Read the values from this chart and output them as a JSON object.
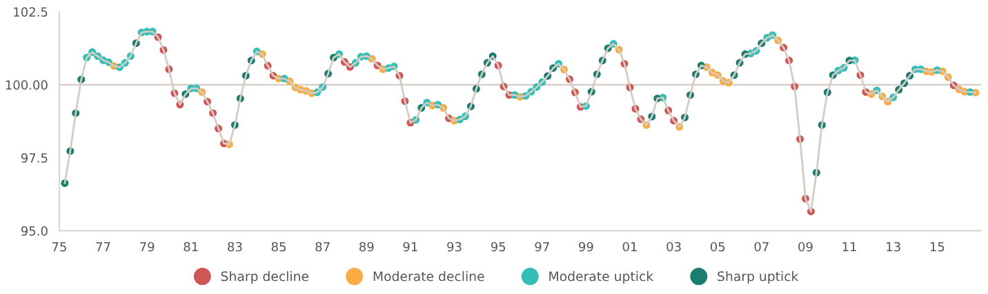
{
  "chart_data": {
    "type": "scatter",
    "xlim": [
      1975,
      2017
    ],
    "xticks": [
      {
        "value": 1975,
        "label": "75"
      },
      {
        "value": 1977,
        "label": "77"
      },
      {
        "value": 1979,
        "label": "79"
      },
      {
        "value": 1981,
        "label": "81"
      },
      {
        "value": 1983,
        "label": "83"
      },
      {
        "value": 1985,
        "label": "85"
      },
      {
        "value": 1987,
        "label": "87"
      },
      {
        "value": 1989,
        "label": "89"
      },
      {
        "value": 1991,
        "label": "91"
      },
      {
        "value": 1993,
        "label": "93"
      },
      {
        "value": 1995,
        "label": "95"
      },
      {
        "value": 1997,
        "label": "97"
      },
      {
        "value": 1999,
        "label": "99"
      },
      {
        "value": 2001,
        "label": "01"
      },
      {
        "value": 2003,
        "label": "03"
      },
      {
        "value": 2005,
        "label": "05"
      },
      {
        "value": 2007,
        "label": "07"
      },
      {
        "value": 2009,
        "label": "09"
      },
      {
        "value": 2011,
        "label": "11"
      },
      {
        "value": 2013,
        "label": "13"
      },
      {
        "value": 2015,
        "label": "15"
      }
    ],
    "ylim": [
      95,
      102.5
    ],
    "yticks": [
      {
        "value": 95,
        "label": "95.0"
      },
      {
        "value": 97.5,
        "label": "97.5"
      },
      {
        "value": 100,
        "label": "100.00"
      },
      {
        "value": 102.5,
        "label": "102.5"
      }
    ],
    "ref_lines": [
      {
        "axis": "y",
        "value": 100,
        "color": "#d3cbc4"
      }
    ],
    "grid": false,
    "legend": "bottom",
    "series": [
      {
        "type": "line",
        "color": "#d3cbc4",
        "x": [
          1975.25,
          1975.5,
          1975.75,
          1976,
          1976.25,
          1976.5,
          1976.75,
          1977,
          1977.25,
          1977.5,
          1977.75,
          1978,
          1978.25,
          1978.5,
          1978.75,
          1979,
          1979.25,
          1979.5,
          1979.75,
          1980,
          1980.25,
          1980.5,
          1980.75,
          1981,
          1981.25,
          1981.5,
          1981.75,
          1982,
          1982.25,
          1982.5,
          1982.75,
          1983,
          1983.25,
          1983.5,
          1983.75,
          1984,
          1984.25,
          1984.5,
          1984.75,
          1985,
          1985.25,
          1985.5,
          1985.75,
          1986,
          1986.25,
          1986.5,
          1986.75,
          1987,
          1987.25,
          1987.5,
          1987.75,
          1988,
          1988.25,
          1988.5,
          1988.75,
          1989,
          1989.25,
          1989.5,
          1989.75,
          1990,
          1990.25,
          1990.5,
          1990.75,
          1991,
          1991.25,
          1991.5,
          1991.75,
          1992,
          1992.25,
          1992.5,
          1992.75,
          1993,
          1993.25,
          1993.5,
          1993.75,
          1994,
          1994.25,
          1994.5,
          1994.75,
          1995,
          1995.25,
          1995.5,
          1995.75,
          1996,
          1996.25,
          1996.5,
          1996.75,
          1997,
          1997.25,
          1997.5,
          1997.75,
          1998,
          1998.25,
          1998.5,
          1998.75,
          1999,
          1999.25,
          1999.5,
          1999.75,
          2000,
          2000.25,
          2000.5,
          2000.75,
          2001,
          2001.25,
          2001.5,
          2001.75,
          2002,
          2002.25,
          2002.5,
          2002.75,
          2003,
          2003.25,
          2003.5,
          2003.75,
          2004,
          2004.25,
          2004.5,
          2004.75,
          2005,
          2005.25,
          2005.5,
          2005.75,
          2006,
          2006.25,
          2006.5,
          2006.75,
          2007,
          2007.25,
          2007.5,
          2007.75,
          2008,
          2008.25,
          2008.5,
          2008.75,
          2009,
          2009.25,
          2009.5,
          2009.75,
          2010,
          2010.25,
          2010.5,
          2010.75,
          2011,
          2011.25,
          2011.5,
          2011.75,
          2012,
          2012.25,
          2012.5,
          2012.75,
          2013,
          2013.25,
          2013.5,
          2013.75,
          2014,
          2014.25,
          2014.5,
          2014.75,
          2015,
          2015.25,
          2015.5,
          2015.75,
          2016,
          2016.25,
          2016.5,
          2016.75
        ],
        "values": [
          96.63,
          97.73,
          99.03,
          100.18,
          100.93,
          101.12,
          100.98,
          100.84,
          100.77,
          100.64,
          100.6,
          100.75,
          100.98,
          101.42,
          101.79,
          101.82,
          101.82,
          101.63,
          101.19,
          100.53,
          99.71,
          99.32,
          99.68,
          99.87,
          99.88,
          99.75,
          99.42,
          99.03,
          98.5,
          97.99,
          97.96,
          98.62,
          99.53,
          100.31,
          100.83,
          101.14,
          101.05,
          100.65,
          100.31,
          100.21,
          100.21,
          100.12,
          99.91,
          99.83,
          99.79,
          99.71,
          99.74,
          99.92,
          100.38,
          100.93,
          101.05,
          100.78,
          100.61,
          100.75,
          100.96,
          100.98,
          100.89,
          100.66,
          100.53,
          100.57,
          100.63,
          100.31,
          99.44,
          98.7,
          98.8,
          99.21,
          99.39,
          99.29,
          99.32,
          99.21,
          98.85,
          98.77,
          98.81,
          98.92,
          99.26,
          99.86,
          100.36,
          100.75,
          100.98,
          100.66,
          99.94,
          99.65,
          99.65,
          99.59,
          99.62,
          99.76,
          99.92,
          100.09,
          100.3,
          100.57,
          100.72,
          100.52,
          100.19,
          99.74,
          99.24,
          99.27,
          99.76,
          100.36,
          100.83,
          101.25,
          101.4,
          101.2,
          100.72,
          99.91,
          99.18,
          98.82,
          98.62,
          98.91,
          99.53,
          99.56,
          99.12,
          98.77,
          98.56,
          98.88,
          99.65,
          100.36,
          100.66,
          100.6,
          100.42,
          100.33,
          100.13,
          100.07,
          100.33,
          100.75,
          101.05,
          101.07,
          101.16,
          101.42,
          101.61,
          101.7,
          101.52,
          101.27,
          100.83,
          99.94,
          98.14,
          96.1,
          95.66,
          96.99,
          98.62,
          99.74,
          100.33,
          100.49,
          100.58,
          100.83,
          100.84,
          100.33,
          99.75,
          99.68,
          99.81,
          99.6,
          99.42,
          99.57,
          99.83,
          100.05,
          100.31,
          100.53,
          100.53,
          100.46,
          100.44,
          100.5,
          100.46,
          100.26,
          99.98,
          99.84,
          99.76,
          99.75,
          99.73
        ]
      },
      {
        "name": "Sharp decline",
        "marker": "circle",
        "color": "#d05656",
        "x": [
          1979.5,
          1979.75,
          1980,
          1980.25,
          1980.5,
          1981.75,
          1982,
          1982.25,
          1982.5,
          1984.5,
          1984.75,
          1988,
          1988.25,
          1989.5,
          1990.5,
          1990.75,
          1991,
          1992.75,
          1995,
          1995.25,
          1995.5,
          1998.25,
          1998.5,
          1998.75,
          2000.75,
          2001,
          2001.25,
          2001.5,
          2002.75,
          2003,
          2008,
          2008.25,
          2008.5,
          2008.75,
          2009,
          2009.25,
          2011.5,
          2011.75,
          2015.75
        ],
        "values": [
          101.63,
          101.19,
          100.53,
          99.71,
          99.32,
          99.42,
          99.03,
          98.5,
          97.99,
          100.65,
          100.31,
          100.78,
          100.61,
          100.66,
          100.31,
          99.44,
          98.7,
          98.85,
          100.66,
          99.94,
          99.65,
          100.19,
          99.74,
          99.24,
          100.72,
          99.91,
          99.18,
          98.82,
          99.12,
          98.77,
          101.27,
          100.83,
          99.94,
          98.14,
          96.1,
          95.66,
          100.33,
          99.75,
          99.98
        ]
      },
      {
        "name": "Moderate decline",
        "marker": "circle",
        "color": "#f9ac44",
        "x": [
          1977.5,
          1981.5,
          1982.75,
          1984.25,
          1985,
          1985.5,
          1985.75,
          1986,
          1986.25,
          1986.5,
          1989.25,
          1989.75,
          1992,
          1992.5,
          1993,
          1996,
          1998,
          2000.5,
          2001.75,
          2003.25,
          2004.5,
          2004.75,
          2005,
          2005.25,
          2005.5,
          2007.75,
          2012,
          2012.5,
          2012.75,
          2014.5,
          2014.75,
          2015.25,
          2015.5,
          2016,
          2016.25,
          2016.75
        ],
        "values": [
          100.64,
          99.75,
          97.96,
          101.05,
          100.21,
          100.12,
          99.91,
          99.83,
          99.79,
          99.71,
          100.89,
          100.53,
          99.29,
          99.21,
          98.77,
          99.59,
          100.52,
          101.2,
          98.62,
          98.56,
          100.6,
          100.42,
          100.33,
          100.13,
          100.07,
          101.52,
          99.68,
          99.6,
          99.42,
          100.46,
          100.44,
          100.46,
          100.26,
          99.84,
          99.76,
          99.73
        ]
      },
      {
        "name": "Moderate uptick",
        "marker": "circle",
        "color": "#34bfb6",
        "x": [
          1976.25,
          1976.5,
          1976.75,
          1977,
          1977.25,
          1977.75,
          1978,
          1978.25,
          1978.75,
          1979,
          1979.25,
          1981,
          1981.25,
          1984,
          1985.25,
          1986.75,
          1987,
          1987.75,
          1988.5,
          1988.75,
          1989,
          1990,
          1990.25,
          1991.25,
          1991.75,
          1992.25,
          1993.25,
          1993.5,
          1995.75,
          1996.25,
          1996.5,
          1996.75,
          1997,
          1997.75,
          1999,
          2000.25,
          2002.5,
          2006.5,
          2006.75,
          2007.25,
          2007.5,
          2010.5,
          2010.75,
          2011.25,
          2012.25,
          2013,
          2014,
          2014.25,
          2015,
          2016.5
        ],
        "values": [
          100.93,
          101.12,
          100.98,
          100.84,
          100.77,
          100.6,
          100.75,
          100.98,
          101.79,
          101.82,
          101.82,
          99.87,
          99.88,
          101.14,
          100.21,
          99.74,
          99.92,
          101.05,
          100.75,
          100.96,
          100.98,
          100.57,
          100.63,
          98.8,
          99.39,
          99.32,
          98.81,
          98.92,
          99.65,
          99.62,
          99.76,
          99.92,
          100.09,
          100.72,
          99.27,
          101.4,
          99.56,
          101.07,
          101.16,
          101.61,
          101.7,
          100.49,
          100.58,
          100.84,
          99.81,
          99.57,
          100.53,
          100.53,
          100.5,
          99.75
        ]
      },
      {
        "name": "Sharp uptick",
        "marker": "circle",
        "color": "#1b7c70",
        "x": [
          1975.25,
          1975.5,
          1975.75,
          1976,
          1978.5,
          1980.75,
          1983,
          1983.25,
          1983.5,
          1983.75,
          1987.25,
          1987.5,
          1991.5,
          1993.75,
          1994,
          1994.25,
          1994.5,
          1994.75,
          1997.25,
          1997.5,
          1999.25,
          1999.5,
          1999.75,
          2000,
          2002,
          2002.25,
          2003.5,
          2003.75,
          2004,
          2004.25,
          2005.75,
          2006,
          2006.25,
          2007,
          2009.5,
          2009.75,
          2010,
          2010.25,
          2011,
          2013.25,
          2013.5,
          2013.75
        ],
        "values": [
          96.63,
          97.73,
          99.03,
          100.18,
          101.42,
          99.68,
          98.62,
          99.53,
          100.31,
          100.83,
          100.38,
          100.93,
          99.21,
          99.26,
          99.86,
          100.36,
          100.75,
          100.98,
          100.3,
          100.57,
          99.76,
          100.36,
          100.83,
          101.25,
          98.91,
          99.53,
          98.88,
          99.65,
          100.36,
          100.66,
          100.33,
          100.75,
          101.05,
          101.42,
          96.99,
          98.62,
          99.74,
          100.33,
          100.83,
          99.83,
          100.05,
          100.31
        ]
      }
    ]
  }
}
